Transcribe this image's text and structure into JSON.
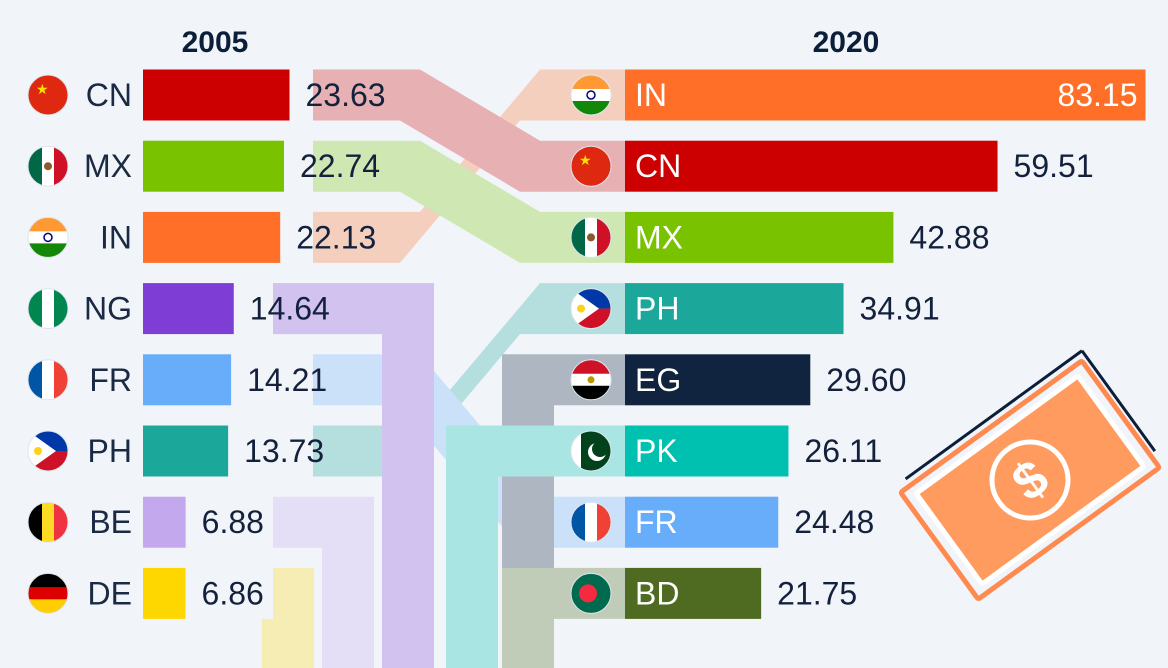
{
  "chart_data": {
    "type": "bar",
    "periods": [
      "2005",
      "2020"
    ],
    "series": [
      {
        "period": "2005",
        "categories": [
          "CN",
          "MX",
          "IN",
          "NG",
          "FR",
          "PH",
          "BE",
          "DE"
        ],
        "values": [
          "23.63",
          "22.74",
          "22.13",
          "14.64",
          "14.21",
          "13.73",
          "6.88",
          "6.86"
        ]
      },
      {
        "period": "2020",
        "categories": [
          "IN",
          "CN",
          "MX",
          "PH",
          "EG",
          "PK",
          "FR",
          "BD"
        ],
        "values": [
          "83.15",
          "59.51",
          "42.88",
          "34.91",
          "29.60",
          "26.11",
          "24.48",
          "21.75"
        ]
      }
    ]
  },
  "colors": {
    "CN": "#cc0000",
    "MX": "#79c200",
    "IN": "#ff6f27",
    "NG": "#7e3ed6",
    "FR": "#67adfa",
    "PH": "#1ba89a",
    "BE": "#c4a8ee",
    "DE": "#ffd700",
    "EG": "#11243f",
    "PK": "#00c0b0",
    "BD": "#4f6b22"
  },
  "icons": [
    "flag-icon",
    "money-bill-icon"
  ]
}
